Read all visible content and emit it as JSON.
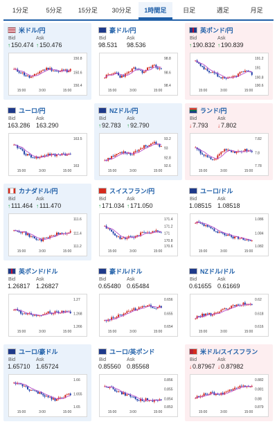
{
  "tabs": [
    {
      "label": "1分足",
      "active": false
    },
    {
      "label": "5分足",
      "active": false
    },
    {
      "label": "15分足",
      "active": false
    },
    {
      "label": "30分足",
      "active": false
    },
    {
      "label": "1時間足",
      "active": true
    },
    {
      "label": "日足",
      "active": false
    },
    {
      "label": "週足",
      "active": false
    },
    {
      "label": "月足",
      "active": false
    }
  ],
  "labels": {
    "bid": "Bid",
    "ask": "Ask"
  },
  "colors": {
    "up": "#1a9b3b",
    "down": "#d0281e",
    "bull": "#d0281e",
    "bear": "#1f3fa8",
    "ma": "#b84cc8",
    "pair_text": "#1f5fa8"
  },
  "cards": [
    {
      "pair": "米ドル/円",
      "flag": "us-flag-icon",
      "bg": "blue",
      "bid": "150.474",
      "ask": "150.476",
      "dir": "up",
      "chart": {
        "yticks": [
          "150.8",
          "150.6",
          "150.4"
        ],
        "xticks": [
          "15:00",
          "3:00",
          "15:00"
        ],
        "seed": 11,
        "trend": [
          0.55,
          0.5,
          0.45,
          0.35,
          0.28,
          0.3,
          0.4,
          0.5,
          0.55,
          0.6,
          0.55,
          0.5,
          0.45,
          0.55,
          0.5,
          0.58
        ]
      }
    },
    {
      "pair": "豪ドル/円",
      "flag": "au-flag-icon",
      "bg": "white",
      "bid": "98.531",
      "ask": "98.536",
      "dir": "none",
      "chart": {
        "yticks": [
          "98.8",
          "98.6",
          "98.4"
        ],
        "xticks": [
          "15:00",
          "3:00",
          "15:00"
        ],
        "seed": 23,
        "trend": [
          0.3,
          0.35,
          0.4,
          0.45,
          0.3,
          0.35,
          0.4,
          0.55,
          0.6,
          0.5,
          0.45,
          0.55,
          0.65,
          0.7,
          0.6,
          0.55
        ]
      }
    },
    {
      "pair": "英ポンド/円",
      "flag": "gb-flag-icon",
      "bg": "pink",
      "bid": "190.832",
      "ask": "190.839",
      "dir": "up",
      "chart": {
        "yticks": [
          "191.2",
          "191",
          "190.8",
          "190.6"
        ],
        "xticks": [
          "15:00",
          "3:00",
          "15:00"
        ],
        "seed": 37,
        "trend": [
          0.85,
          0.7,
          0.6,
          0.5,
          0.4,
          0.45,
          0.3,
          0.25,
          0.2,
          0.25,
          0.3,
          0.35,
          0.45,
          0.5,
          0.45,
          0.4
        ]
      }
    },
    {
      "pair": "ユーロ/円",
      "flag": "eu-flag-icon",
      "bg": "white",
      "bid": "163.286",
      "ask": "163.290",
      "dir": "none",
      "chart": {
        "yticks": [
          "163.5",
          "163"
        ],
        "xticks": [
          "15:00",
          "3:00",
          "15:00"
        ],
        "seed": 41,
        "trend": [
          0.7,
          0.65,
          0.55,
          0.4,
          0.35,
          0.3,
          0.28,
          0.3,
          0.35,
          0.4,
          0.38,
          0.35,
          0.4,
          0.42,
          0.38,
          0.4
        ]
      }
    },
    {
      "pair": "NZドル/円",
      "flag": "nz-flag-icon",
      "bg": "blue",
      "bid": "92.783",
      "ask": "92.790",
      "dir": "up",
      "chart": {
        "yticks": [
          "93.2",
          "93",
          "92.8",
          "92.6"
        ],
        "xticks": [
          "15:00",
          "3:00",
          "15:00"
        ],
        "seed": 53,
        "trend": [
          0.2,
          0.25,
          0.3,
          0.4,
          0.45,
          0.5,
          0.45,
          0.4,
          0.5,
          0.55,
          0.65,
          0.7,
          0.75,
          0.8,
          0.7,
          0.65
        ]
      }
    },
    {
      "pair": "ランド/円",
      "flag": "za-flag-icon",
      "bg": "pink",
      "bid": "7.793",
      "ask": "7.802",
      "dir": "down",
      "chart": {
        "yticks": [
          "7.82",
          "7.8",
          "7.78"
        ],
        "xticks": [
          "15:00",
          "3:00",
          "15:00"
        ],
        "seed": 67,
        "trend": [
          0.6,
          0.5,
          0.4,
          0.3,
          0.25,
          0.2,
          0.35,
          0.5,
          0.6,
          0.55,
          0.5,
          0.45,
          0.5,
          0.55,
          0.52,
          0.5
        ]
      }
    },
    {
      "pair": "カナダドル/円",
      "flag": "ca-flag-icon",
      "bg": "blue",
      "bid": "111.464",
      "ask": "111.470",
      "dir": "up",
      "chart": {
        "yticks": [
          "111.6",
          "111.4",
          "111.2"
        ],
        "xticks": [
          "15:00",
          "3:00",
          "15:00"
        ],
        "seed": 71,
        "trend": [
          0.6,
          0.55,
          0.5,
          0.45,
          0.35,
          0.3,
          0.25,
          0.2,
          0.25,
          0.3,
          0.35,
          0.4,
          0.45,
          0.42,
          0.45,
          0.5
        ]
      }
    },
    {
      "pair": "スイスフラン/円",
      "flag": "ch-flag-icon",
      "bg": "white",
      "bid": "171.034",
      "ask": "171.050",
      "dir": "up",
      "chart": {
        "yticks": [
          "171.4",
          "171.2",
          "171",
          "170.8",
          "170.6"
        ],
        "xticks": [
          "15:00",
          "3:00",
          "15:00"
        ],
        "seed": 83,
        "trend": [
          0.7,
          0.6,
          0.5,
          0.35,
          0.3,
          0.25,
          0.3,
          0.35,
          0.3,
          0.4,
          0.45,
          0.5,
          0.48,
          0.55,
          0.5,
          0.52
        ]
      }
    },
    {
      "pair": "ユーロ/ドル",
      "flag": "eu-flag-icon",
      "bg": "white",
      "bid": "1.08515",
      "ask": "1.08518",
      "dir": "none",
      "chart": {
        "yticks": [
          "1.086",
          "1.084",
          "1.082"
        ],
        "xticks": [
          "15:00",
          "3:00",
          "15:00"
        ],
        "seed": 97,
        "trend": [
          0.85,
          0.8,
          0.75,
          0.7,
          0.6,
          0.55,
          0.5,
          0.45,
          0.4,
          0.35,
          0.3,
          0.3,
          0.28,
          0.25,
          0.22,
          0.2
        ]
      }
    },
    {
      "pair": "英ポンド/ドル",
      "flag": "gb-flag-icon",
      "bg": "white",
      "bid": "1.26817",
      "ask": "1.26827",
      "dir": "none",
      "chart": {
        "yticks": [
          "1.27",
          "1.268",
          "1.266"
        ],
        "xticks": [
          "15:00",
          "3:00",
          "15:00"
        ],
        "seed": 103,
        "trend": [
          0.6,
          0.55,
          0.45,
          0.4,
          0.45,
          0.4,
          0.35,
          0.4,
          0.45,
          0.5,
          0.45,
          0.5,
          0.48,
          0.5,
          0.52,
          0.5
        ]
      }
    },
    {
      "pair": "豪ドル/ドル",
      "flag": "au-flag-icon",
      "bg": "white",
      "bid": "0.65480",
      "ask": "0.65484",
      "dir": "none",
      "chart": {
        "yticks": [
          "0.656",
          "0.655",
          "0.654"
        ],
        "xticks": [
          "15:00",
          "3:00",
          "15:00"
        ],
        "seed": 113,
        "trend": [
          0.2,
          0.25,
          0.3,
          0.35,
          0.4,
          0.45,
          0.5,
          0.55,
          0.6,
          0.65,
          0.7,
          0.75,
          0.7,
          0.65,
          0.7,
          0.68
        ]
      }
    },
    {
      "pair": "NZドル/ドル",
      "flag": "nz-flag-icon",
      "bg": "white",
      "bid": "0.61655",
      "ask": "0.61669",
      "dir": "none",
      "chart": {
        "yticks": [
          "0.62",
          "0.618",
          "0.616"
        ],
        "xticks": [
          "15:00",
          "3:00",
          "15:00"
        ],
        "seed": 127,
        "trend": [
          0.3,
          0.35,
          0.4,
          0.45,
          0.4,
          0.45,
          0.5,
          0.55,
          0.6,
          0.65,
          0.7,
          0.75,
          0.78,
          0.8,
          0.72,
          0.75
        ]
      }
    },
    {
      "pair": "ユーロ/豪ドル",
      "flag": "eu-flag-icon",
      "bg": "blue",
      "bid": "1.65710",
      "ask": "1.65724",
      "dir": "none",
      "chart": {
        "yticks": [
          "1.66",
          "1.655",
          "1.65"
        ],
        "xticks": [
          "15:00",
          "3:00",
          "15:00"
        ],
        "seed": 131,
        "trend": [
          0.85,
          0.8,
          0.75,
          0.7,
          0.6,
          0.55,
          0.5,
          0.45,
          0.4,
          0.35,
          0.3,
          0.25,
          0.3,
          0.35,
          0.4,
          0.45
        ]
      }
    },
    {
      "pair": "ユーロ/英ポンド",
      "flag": "eu-flag-icon",
      "bg": "white",
      "bid": "0.85560",
      "ask": "0.85568",
      "dir": "none",
      "chart": {
        "yticks": [
          "0.856",
          "0.855",
          "0.854",
          "0.853"
        ],
        "xticks": [
          "15:00",
          "3:00",
          "15:00"
        ],
        "seed": 149,
        "trend": [
          0.75,
          0.7,
          0.65,
          0.55,
          0.5,
          0.45,
          0.4,
          0.35,
          0.3,
          0.25,
          0.2,
          0.25,
          0.2,
          0.22,
          0.25,
          0.2
        ]
      }
    },
    {
      "pair": "米ドル/スイスフラン",
      "flag": "us-ch-flag-icon",
      "bg": "pink",
      "bid": "0.87967",
      "ask": "0.87982",
      "dir": "down",
      "chart": {
        "yticks": [
          "0.882",
          "0.881",
          "0.88",
          "0.879"
        ],
        "xticks": [
          "15:00",
          "3:00",
          "15:00"
        ],
        "seed": 157,
        "trend": [
          0.3,
          0.35,
          0.4,
          0.45,
          0.5,
          0.45,
          0.4,
          0.45,
          0.5,
          0.55,
          0.6,
          0.65,
          0.7,
          0.72,
          0.68,
          0.7
        ]
      }
    }
  ]
}
